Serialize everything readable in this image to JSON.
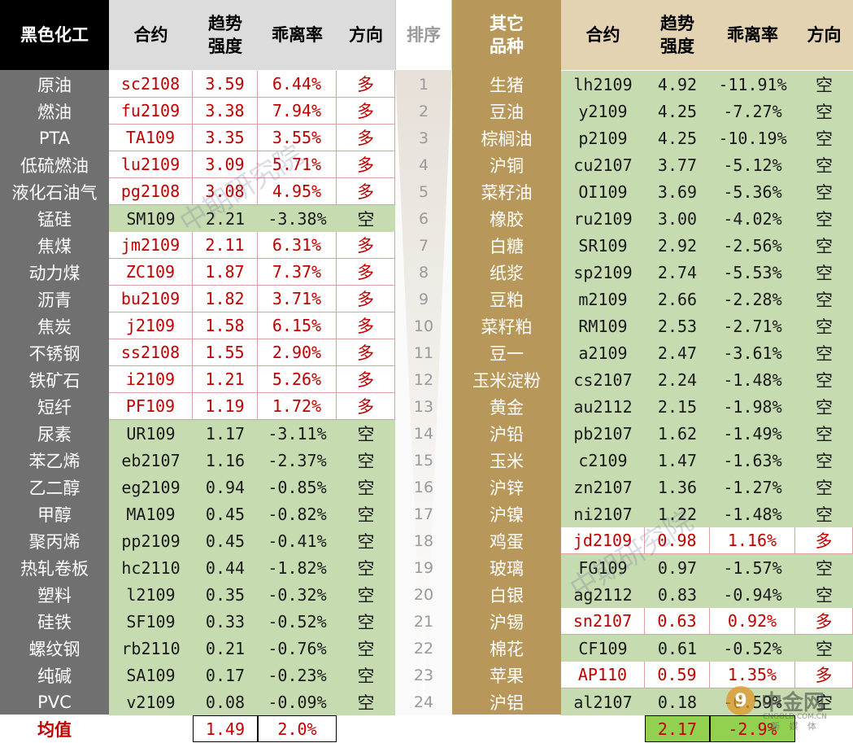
{
  "headers": {
    "left_category": "黑色化工",
    "contract": "合约",
    "trend": "趋势\n强度",
    "deviation": "乖离率",
    "direction": "方向",
    "rank": "排序",
    "right_category": "其它\n品种",
    "contract2": "合约",
    "trend2": "趋势\n强度",
    "deviation2": "乖离率",
    "direction2": "方向"
  },
  "left_rows": [
    {
      "name": "原油",
      "contract": "sc2108",
      "trend": "3.59",
      "dev": "6.44%",
      "dir": "多"
    },
    {
      "name": "燃油",
      "contract": "fu2109",
      "trend": "3.38",
      "dev": "7.94%",
      "dir": "多"
    },
    {
      "name": "PTA",
      "contract": "TA109",
      "trend": "3.35",
      "dev": "3.55%",
      "dir": "多"
    },
    {
      "name": "低硫燃油",
      "contract": "lu2109",
      "trend": "3.09",
      "dev": "5.71%",
      "dir": "多"
    },
    {
      "name": "液化石油气",
      "contract": "pg2108",
      "trend": "3.08",
      "dev": "4.95%",
      "dir": "多"
    },
    {
      "name": "锰硅",
      "contract": "SM109",
      "trend": "2.21",
      "dev": "-3.38%",
      "dir": "空"
    },
    {
      "name": "焦煤",
      "contract": "jm2109",
      "trend": "2.11",
      "dev": "6.31%",
      "dir": "多"
    },
    {
      "name": "动力煤",
      "contract": "ZC109",
      "trend": "1.87",
      "dev": "7.37%",
      "dir": "多"
    },
    {
      "name": "沥青",
      "contract": "bu2109",
      "trend": "1.82",
      "dev": "3.71%",
      "dir": "多"
    },
    {
      "name": "焦炭",
      "contract": "j2109",
      "trend": "1.58",
      "dev": "6.15%",
      "dir": "多"
    },
    {
      "name": "不锈钢",
      "contract": "ss2108",
      "trend": "1.55",
      "dev": "2.90%",
      "dir": "多"
    },
    {
      "name": "铁矿石",
      "contract": "i2109",
      "trend": "1.21",
      "dev": "5.26%",
      "dir": "多"
    },
    {
      "name": "短纤",
      "contract": "PF109",
      "trend": "1.19",
      "dev": "1.72%",
      "dir": "多"
    },
    {
      "name": "尿素",
      "contract": "UR109",
      "trend": "1.17",
      "dev": "-3.11%",
      "dir": "空"
    },
    {
      "name": "苯乙烯",
      "contract": "eb2107",
      "trend": "1.16",
      "dev": "-2.37%",
      "dir": "空"
    },
    {
      "name": "乙二醇",
      "contract": "eg2109",
      "trend": "0.94",
      "dev": "-0.85%",
      "dir": "空"
    },
    {
      "name": "甲醇",
      "contract": "MA109",
      "trend": "0.45",
      "dev": "-0.82%",
      "dir": "空"
    },
    {
      "name": "聚丙烯",
      "contract": "pp2109",
      "trend": "0.45",
      "dev": "-0.41%",
      "dir": "空"
    },
    {
      "name": "热轧卷板",
      "contract": "hc2110",
      "trend": "0.44",
      "dev": "-1.82%",
      "dir": "空"
    },
    {
      "name": "塑料",
      "contract": "l2109",
      "trend": "0.35",
      "dev": "-0.32%",
      "dir": "空"
    },
    {
      "name": "硅铁",
      "contract": "SF109",
      "trend": "0.33",
      "dev": "-0.52%",
      "dir": "空"
    },
    {
      "name": "螺纹钢",
      "contract": "rb2110",
      "trend": "0.21",
      "dev": "-0.76%",
      "dir": "空"
    },
    {
      "name": "纯碱",
      "contract": "SA109",
      "trend": "0.17",
      "dev": "-0.23%",
      "dir": "空"
    },
    {
      "name": "PVC",
      "contract": "v2109",
      "trend": "0.08",
      "dev": "-0.09%",
      "dir": "空"
    }
  ],
  "ranks": [
    "1",
    "2",
    "3",
    "4",
    "5",
    "6",
    "7",
    "8",
    "9",
    "10",
    "11",
    "12",
    "13",
    "14",
    "15",
    "16",
    "17",
    "18",
    "19",
    "20",
    "21",
    "22",
    "23",
    "24"
  ],
  "right_rows": [
    {
      "name": "生猪",
      "contract": "lh2109",
      "trend": "4.92",
      "dev": "-11.91%",
      "dir": "空"
    },
    {
      "name": "豆油",
      "contract": "y2109",
      "trend": "4.25",
      "dev": "-7.27%",
      "dir": "空"
    },
    {
      "name": "棕榈油",
      "contract": "p2109",
      "trend": "4.25",
      "dev": "-10.19%",
      "dir": "空"
    },
    {
      "name": "沪铜",
      "contract": "cu2107",
      "trend": "3.77",
      "dev": "-5.12%",
      "dir": "空"
    },
    {
      "name": "菜籽油",
      "contract": "OI109",
      "trend": "3.69",
      "dev": "-5.36%",
      "dir": "空"
    },
    {
      "name": "橡胶",
      "contract": "ru2109",
      "trend": "3.00",
      "dev": "-4.02%",
      "dir": "空"
    },
    {
      "name": "白糖",
      "contract": "SR109",
      "trend": "2.92",
      "dev": "-2.56%",
      "dir": "空"
    },
    {
      "name": "纸浆",
      "contract": "sp2109",
      "trend": "2.74",
      "dev": "-5.53%",
      "dir": "空"
    },
    {
      "name": "豆粕",
      "contract": "m2109",
      "trend": "2.66",
      "dev": "-2.28%",
      "dir": "空"
    },
    {
      "name": "菜籽粕",
      "contract": "RM109",
      "trend": "2.53",
      "dev": "-2.71%",
      "dir": "空"
    },
    {
      "name": "豆一",
      "contract": "a2109",
      "trend": "2.47",
      "dev": "-3.61%",
      "dir": "空"
    },
    {
      "name": "玉米淀粉",
      "contract": "cs2107",
      "trend": "2.24",
      "dev": "-1.48%",
      "dir": "空"
    },
    {
      "name": "黄金",
      "contract": "au2112",
      "trend": "2.15",
      "dev": "-1.98%",
      "dir": "空"
    },
    {
      "name": "沪铅",
      "contract": "pb2107",
      "trend": "1.62",
      "dev": "-1.49%",
      "dir": "空"
    },
    {
      "name": "玉米",
      "contract": "c2109",
      "trend": "1.47",
      "dev": "-1.63%",
      "dir": "空"
    },
    {
      "name": "沪锌",
      "contract": "zn2107",
      "trend": "1.36",
      "dev": "-1.27%",
      "dir": "空"
    },
    {
      "name": "沪镍",
      "contract": "ni2107",
      "trend": "1.22",
      "dev": "-1.48%",
      "dir": "空"
    },
    {
      "name": "鸡蛋",
      "contract": "jd2109",
      "trend": "0.98",
      "dev": "1.16%",
      "dir": "多"
    },
    {
      "name": "玻璃",
      "contract": "FG109",
      "trend": "0.97",
      "dev": "-1.57%",
      "dir": "空"
    },
    {
      "name": "白银",
      "contract": "ag2112",
      "trend": "0.83",
      "dev": "-0.94%",
      "dir": "空"
    },
    {
      "name": "沪锡",
      "contract": "sn2107",
      "trend": "0.63",
      "dev": "0.92%",
      "dir": "多"
    },
    {
      "name": "棉花",
      "contract": "CF109",
      "trend": "0.61",
      "dev": "-0.52%",
      "dir": "空"
    },
    {
      "name": "苹果",
      "contract": "AP110",
      "trend": "0.59",
      "dev": "1.35%",
      "dir": "多"
    },
    {
      "name": "沪铝",
      "contract": "al2107",
      "trend": "0.18",
      "dev": "-0.59%",
      "dir": "空"
    }
  ],
  "averages": {
    "label": "均值",
    "left_trend": "1.49",
    "left_dev": "2.0%",
    "right_trend": "2.17",
    "right_dev": "-2.9%"
  },
  "watermarks": [
    "中期研究院",
    "中期研究院",
    "中期研究院"
  ],
  "logo": {
    "name": "中金网",
    "sub": "CNGOLD.COM.CN",
    "tag": "新 媒 体",
    "mark": "9"
  },
  "colors": {
    "bull_text": "#c00000",
    "bear_bg": "#c6dbb0",
    "left_cat_bg": "#707070",
    "right_cat_bg": "#b8975a",
    "avg_green": "#92d050"
  }
}
